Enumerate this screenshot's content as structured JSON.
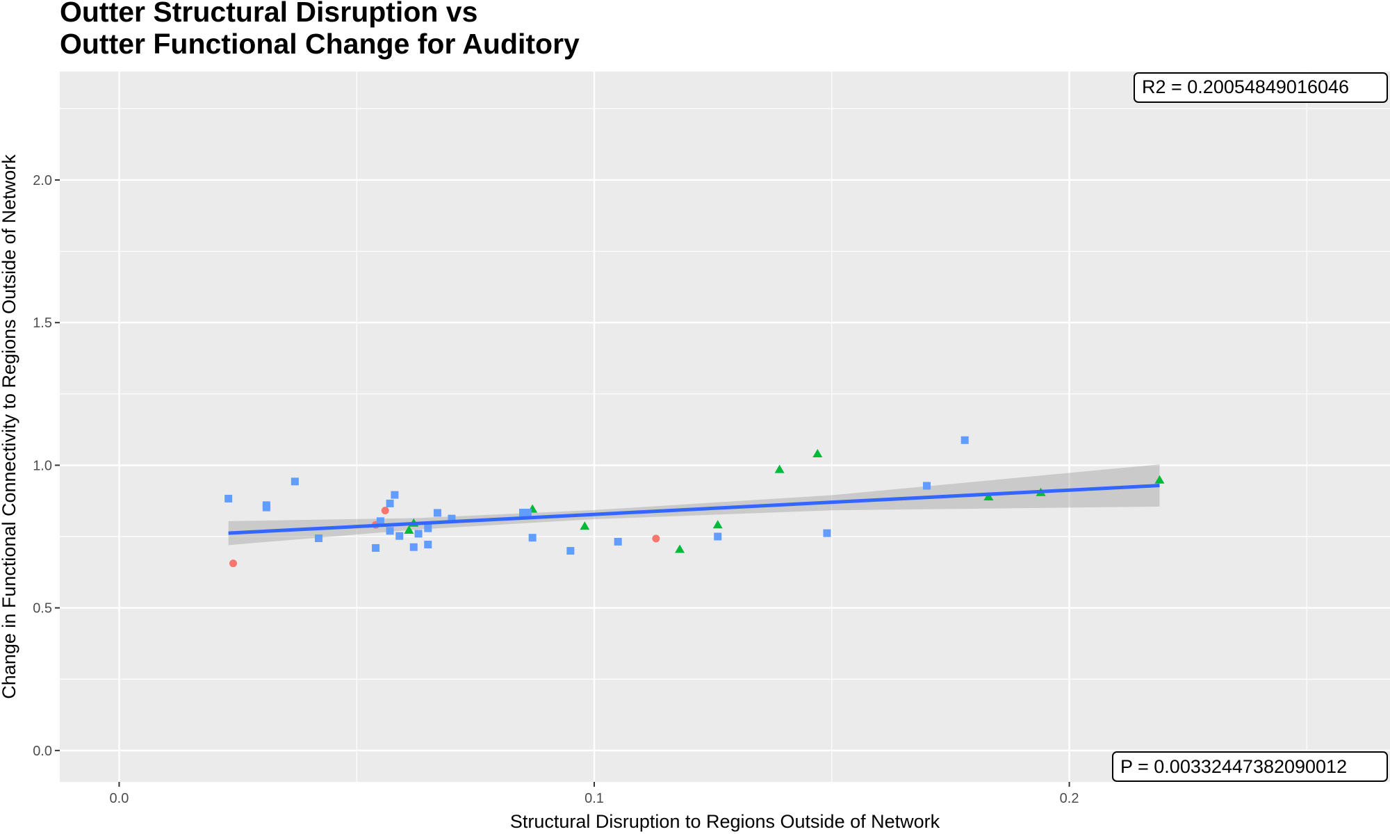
{
  "chart_data": {
    "type": "scatter",
    "title_lines": [
      "Outter Structural Disruption vs",
      "Outter Functional Change for Auditory"
    ],
    "xlabel": "Structural Disruption to Regions Outside of Network",
    "ylabel": "Change in Functional Connectivity to Regions Outside of Network",
    "xlim": [
      -0.0125,
      0.2675
    ],
    "ylim": [
      -0.11,
      2.38
    ],
    "x_ticks": [
      0.0,
      0.1,
      0.2
    ],
    "x_tick_labels": [
      "0.0",
      "0.1",
      "0.2"
    ],
    "y_ticks": [
      0.0,
      0.5,
      1.0,
      1.5,
      2.0
    ],
    "y_tick_labels": [
      "0.0",
      "0.5",
      "1.0",
      "1.5",
      "2.0"
    ],
    "grid": true,
    "legend": "none",
    "annotations": {
      "r2_text": "R2 =  0.20054849016046",
      "p_text": "P =  0.00332447382090012"
    },
    "regression": {
      "x": [
        0.023,
        0.219
      ],
      "y": [
        0.762,
        0.929
      ],
      "band_x": [
        0.023,
        0.063,
        0.1,
        0.15,
        0.219
      ],
      "band_lower": [
        0.72,
        0.775,
        0.811,
        0.842,
        0.855
      ],
      "band_upper": [
        0.804,
        0.815,
        0.843,
        0.895,
        1.003
      ]
    },
    "series": [
      {
        "marker": "circle",
        "color": "#F8766D",
        "points": [
          [
            0.024,
            0.656
          ],
          [
            0.054,
            0.791
          ],
          [
            0.056,
            0.841
          ],
          [
            0.113,
            0.743
          ]
        ]
      },
      {
        "marker": "triangle",
        "color": "#00BA38",
        "points": [
          [
            0.061,
            0.772
          ],
          [
            0.062,
            0.797
          ],
          [
            0.087,
            0.846
          ],
          [
            0.098,
            0.786
          ],
          [
            0.118,
            0.705
          ],
          [
            0.126,
            0.791
          ],
          [
            0.139,
            0.985
          ],
          [
            0.147,
            1.04
          ],
          [
            0.183,
            0.889
          ],
          [
            0.194,
            0.904
          ],
          [
            0.219,
            0.948
          ]
        ]
      },
      {
        "marker": "square",
        "color": "#619CFF",
        "points": [
          [
            0.023,
            0.883
          ],
          [
            0.031,
            0.86
          ],
          [
            0.031,
            0.852
          ],
          [
            0.037,
            0.943
          ],
          [
            0.042,
            0.744
          ],
          [
            0.054,
            0.71
          ],
          [
            0.055,
            0.804
          ],
          [
            0.057,
            0.866
          ],
          [
            0.057,
            0.77
          ],
          [
            0.058,
            0.896
          ],
          [
            0.059,
            0.752
          ],
          [
            0.062,
            0.713
          ],
          [
            0.063,
            0.76
          ],
          [
            0.065,
            0.779
          ],
          [
            0.065,
            0.722
          ],
          [
            0.067,
            0.833
          ],
          [
            0.07,
            0.813
          ],
          [
            0.085,
            0.834
          ],
          [
            0.086,
            0.834
          ],
          [
            0.087,
            0.746
          ],
          [
            0.095,
            0.7
          ],
          [
            0.105,
            0.732
          ],
          [
            0.126,
            0.75
          ],
          [
            0.149,
            0.762
          ],
          [
            0.17,
            0.928
          ],
          [
            0.178,
            1.088
          ]
        ]
      }
    ]
  }
}
